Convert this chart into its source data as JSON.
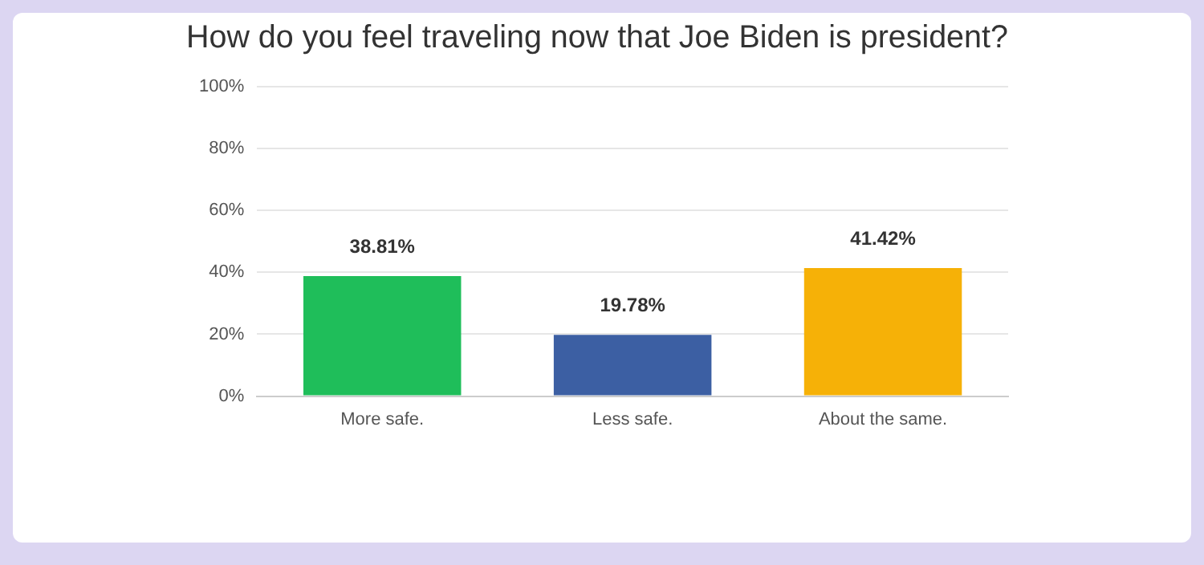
{
  "chart_data": {
    "type": "bar",
    "title": "How do you feel traveling now that Joe Biden is president?",
    "categories": [
      "More safe.",
      "Less safe.",
      "About the same."
    ],
    "values": [
      38.81,
      19.78,
      41.42
    ],
    "colors": [
      "#1fbe5a",
      "#3c5fa3",
      "#f6b107"
    ],
    "value_labels": [
      "38.81%",
      "19.78%",
      "41.42%"
    ],
    "ylim": [
      0,
      100
    ],
    "yticks": [
      {
        "value": 0,
        "label": "0%"
      },
      {
        "value": 20,
        "label": "20%"
      },
      {
        "value": 40,
        "label": "40%"
      },
      {
        "value": 60,
        "label": "60%"
      },
      {
        "value": 80,
        "label": "80%"
      },
      {
        "value": 100,
        "label": "100%"
      }
    ],
    "grid": "y",
    "legend": false
  }
}
